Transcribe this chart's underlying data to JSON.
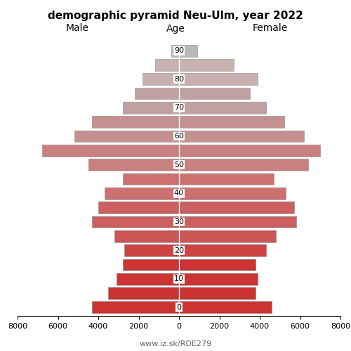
{
  "title": "demographic pyramid Neu-Ulm, year 2022",
  "label_male": "Male",
  "label_female": "Female",
  "label_age": "Age",
  "footnote": "www.iz.sk/RDE279",
  "age_groups": [
    0,
    5,
    10,
    15,
    20,
    25,
    30,
    35,
    40,
    45,
    50,
    55,
    60,
    65,
    70,
    75,
    80,
    85,
    90
  ],
  "male_values": [
    4300,
    3500,
    3100,
    2800,
    2700,
    3200,
    4300,
    4000,
    3700,
    2800,
    4500,
    6800,
    5200,
    4300,
    2800,
    2200,
    1800,
    1200,
    380
  ],
  "female_values": [
    4600,
    3800,
    3900,
    3800,
    4300,
    4800,
    5800,
    5700,
    5300,
    4700,
    6400,
    7000,
    6200,
    5200,
    4300,
    3500,
    3900,
    2700,
    900
  ],
  "colors": {
    "0": "#cc3333",
    "5": "#cc3333",
    "10": "#cc3333",
    "15": "#cc3333",
    "20": "#cc4444",
    "25": "#cc5555",
    "30": "#cc5f5f",
    "35": "#cc5f5f",
    "40": "#cc7070",
    "45": "#cc7070",
    "50": "#c98080",
    "55": "#c98080",
    "60": "#c49090",
    "65": "#c49090",
    "70": "#c0a0a0",
    "75": "#c0a0a0",
    "80": "#c8b0b0",
    "85": "#c8b2b2",
    "90": "#b8b8b8"
  },
  "xlim": 8000,
  "bar_height": 0.82,
  "figsize": [
    5.0,
    5.0
  ],
  "dpi": 100
}
